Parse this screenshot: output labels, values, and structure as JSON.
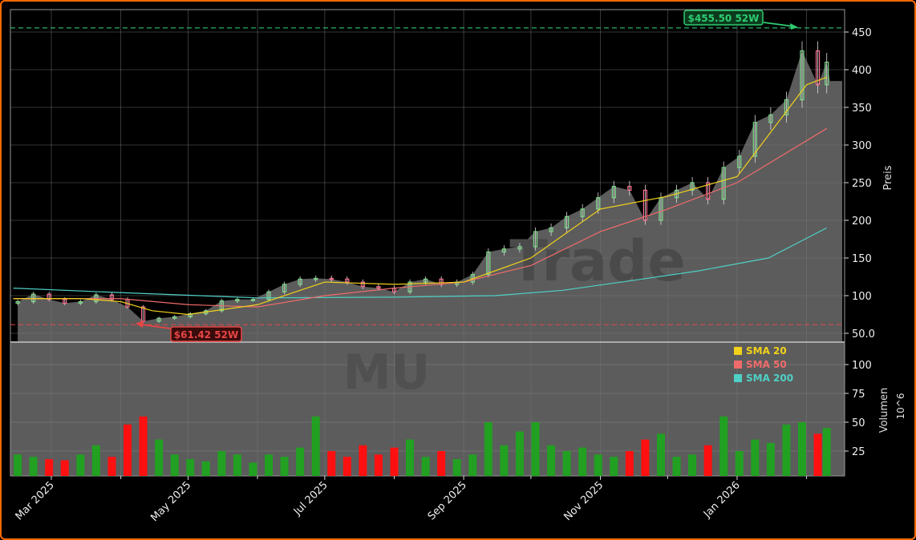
{
  "chart_data": {
    "type": "candlestick",
    "ticker_watermark": "MU",
    "brand_watermark": "Trade",
    "price_axis": {
      "label": "Preis",
      "ylim": [
        38,
        480
      ],
      "ticks": [
        50,
        100,
        150,
        200,
        250,
        300,
        350,
        400,
        450
      ],
      "tick_labels": [
        "50.0",
        "100",
        "150",
        "200",
        "250",
        "300",
        "350",
        "400",
        "450"
      ]
    },
    "volume_axis": {
      "label": "Volumen",
      "unit_label": "10^6",
      "ylim": [
        0,
        115
      ],
      "ticks": [
        25,
        50,
        75,
        100
      ],
      "tick_labels": [
        "25",
        "50",
        "75",
        "100"
      ]
    },
    "x_axis": {
      "range": [
        "2025-02-12",
        "2026-02-24"
      ],
      "tick_dates": [
        "2025-03-01",
        "2025-05-01",
        "2025-07-01",
        "2025-09-01",
        "2025-11-01",
        "2026-01-01"
      ],
      "tick_labels": [
        "Mar 2025",
        "May 2025",
        "Jul 2025",
        "Sep 2025",
        "Nov 2025",
        "Jan 2026"
      ],
      "minor_tick_dates": [
        "2025-04-01",
        "2025-06-01",
        "2025-08-01",
        "2025-10-01",
        "2025-12-01",
        "2026-02-01"
      ]
    },
    "grid": true,
    "colors": {
      "up": "#22a022",
      "down": "#ff1010",
      "candle_up": "#7ddc8a",
      "candle_down": "#ff6f91",
      "sma20": "#f2d21b",
      "sma50": "#f06b6b",
      "sma200": "#4fd0c6",
      "high": "#2ecc71",
      "low": "#e84545",
      "area": "#5c5c5c"
    },
    "dates": [
      "2025-02-14",
      "2025-02-21",
      "2025-02-28",
      "2025-03-07",
      "2025-03-14",
      "2025-03-21",
      "2025-03-28",
      "2025-04-04",
      "2025-04-11",
      "2025-04-18",
      "2025-04-25",
      "2025-05-02",
      "2025-05-09",
      "2025-05-16",
      "2025-05-23",
      "2025-05-30",
      "2025-06-06",
      "2025-06-13",
      "2025-06-20",
      "2025-06-27",
      "2025-07-04",
      "2025-07-11",
      "2025-07-18",
      "2025-07-25",
      "2025-08-01",
      "2025-08-08",
      "2025-08-15",
      "2025-08-22",
      "2025-08-29",
      "2025-09-05",
      "2025-09-12",
      "2025-09-19",
      "2025-09-26",
      "2025-10-03",
      "2025-10-10",
      "2025-10-17",
      "2025-10-24",
      "2025-10-31",
      "2025-11-07",
      "2025-11-14",
      "2025-11-21",
      "2025-11-28",
      "2025-12-05",
      "2025-12-12",
      "2025-12-19",
      "2025-12-26",
      "2026-01-02",
      "2026-01-09",
      "2026-01-16",
      "2026-01-23",
      "2026-01-30",
      "2026-02-06",
      "2026-02-10"
    ],
    "close": [
      92,
      102,
      95,
      90,
      92,
      101,
      95,
      85,
      66,
      70,
      72,
      76,
      80,
      93,
      95,
      95,
      105,
      115,
      122,
      123,
      122,
      118,
      112,
      110,
      105,
      118,
      122,
      115,
      118,
      128,
      158,
      162,
      165,
      185,
      190,
      205,
      215,
      230,
      245,
      240,
      200,
      230,
      240,
      250,
      228,
      270,
      285,
      330,
      340,
      360,
      425,
      380,
      410
    ],
    "volume": [
      22,
      20,
      18,
      17,
      22,
      30,
      20,
      48,
      55,
      35,
      22,
      18,
      16,
      25,
      22,
      15,
      22,
      20,
      28,
      55,
      25,
      20,
      30,
      22,
      28,
      35,
      20,
      25,
      18,
      22,
      50,
      30,
      42,
      50,
      30,
      25,
      28,
      22,
      20,
      25,
      35,
      40,
      20,
      22,
      30,
      55,
      25,
      35,
      32,
      48,
      50,
      40,
      45
    ],
    "sma20": {
      "dates": [
        "2025-02-12",
        "2025-03-15",
        "2025-04-01",
        "2025-04-15",
        "2025-05-01",
        "2025-06-01",
        "2025-07-01",
        "2025-08-01",
        "2025-09-01",
        "2025-10-01",
        "2025-11-01",
        "2025-12-01",
        "2026-01-01",
        "2026-02-01",
        "2026-02-10"
      ],
      "values": [
        96,
        96,
        92,
        80,
        75,
        88,
        118,
        115,
        118,
        150,
        215,
        232,
        258,
        380,
        390
      ]
    },
    "sma50": {
      "dates": [
        "2025-02-12",
        "2025-04-01",
        "2025-05-01",
        "2025-06-01",
        "2025-07-01",
        "2025-08-01",
        "2025-09-01",
        "2025-10-01",
        "2025-11-01",
        "2025-12-01",
        "2026-01-01",
        "2026-02-10"
      ],
      "values": [
        96,
        96,
        88,
        85,
        100,
        110,
        118,
        140,
        185,
        215,
        250,
        322
      ]
    },
    "sma200": {
      "dates": [
        "2025-02-12",
        "2025-04-01",
        "2025-06-01",
        "2025-08-01",
        "2025-09-15",
        "2025-10-15",
        "2025-11-15",
        "2025-12-15",
        "2026-01-15",
        "2026-02-10"
      ],
      "values": [
        110,
        104,
        97,
        98,
        100,
        107,
        120,
        133,
        150,
        190
      ]
    },
    "high_52w": {
      "value": 455.5,
      "date": "2026-01-29",
      "label": "$455.50 52W"
    },
    "low_52w": {
      "value": 61.42,
      "date": "2025-04-08",
      "label": "$61.42 52W"
    },
    "legend": {
      "placement": "volume-panel-top-right",
      "entries": [
        {
          "name": "SMA 20",
          "color": "#f2d21b"
        },
        {
          "name": "SMA 50",
          "color": "#f06b6b"
        },
        {
          "name": "SMA 200",
          "color": "#4fd0c6"
        }
      ]
    }
  }
}
